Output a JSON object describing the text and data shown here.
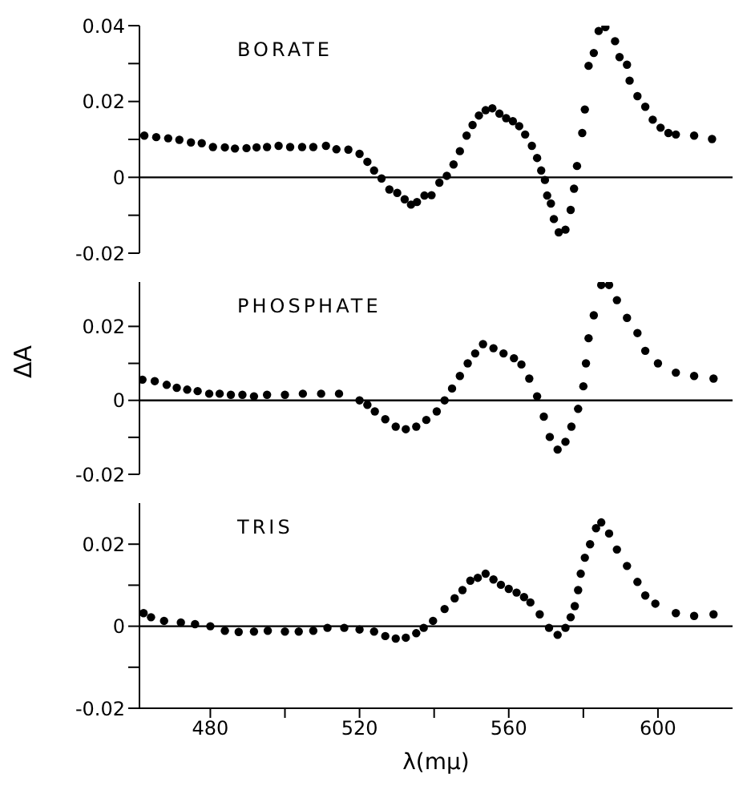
{
  "chart_data": [
    {
      "type": "scatter",
      "title": "BORATE",
      "marker": "circle",
      "tick_labels": "y",
      "xlim": [
        461,
        620
      ],
      "ylim": [
        -0.02,
        0.04
      ],
      "yticks": [
        -0.02,
        {
          "value": -0.01,
          "label": null
        },
        0,
        {
          "value": 0.01,
          "label": null
        },
        0.02,
        {
          "value": 0.03,
          "label": null
        },
        0.04
      ],
      "ref_lines": [
        {
          "axis": "y",
          "value": 0
        }
      ],
      "series": [
        {
          "color": "#000000",
          "x": [
            462.3,
            465.5,
            468.7,
            471.7,
            474.8,
            477.7,
            480.7,
            483.9,
            486.6,
            489.7,
            492.4,
            495.2,
            498.3,
            501.4,
            504.6,
            507.6,
            511,
            513.8,
            517,
            520,
            522.1,
            523.9,
            525.9,
            528,
            530.1,
            532.1,
            533.8,
            535.4,
            537.4,
            539.3,
            541.4,
            543.4,
            545.2,
            546.9,
            548.7,
            550.3,
            552,
            553.8,
            555.6,
            557.5,
            559.3,
            561.1,
            562.8,
            564.4,
            566.2,
            567.6,
            568.7,
            569.7,
            570.3,
            571.3,
            572.1,
            573.4,
            575.2,
            576.6,
            577.5,
            578.3,
            579.7,
            580.4,
            581.4,
            582.8,
            584.1,
            585.9,
            588.5,
            589.7,
            591.7,
            592.4,
            594.5,
            596.6,
            598.6,
            600.7,
            602.8,
            604.8,
            609.7,
            614.5
          ],
          "values": [
            0.011,
            0.0106,
            0.0103,
            0.0099,
            0.0092,
            0.009,
            0.008,
            0.0079,
            0.0076,
            0.0077,
            0.0079,
            0.008,
            0.0083,
            0.008,
            0.008,
            0.008,
            0.0083,
            0.0074,
            0.0073,
            0.0062,
            0.0041,
            0.0018,
            -0.0003,
            -0.0032,
            -0.0041,
            -0.0058,
            -0.0072,
            -0.0065,
            -0.0048,
            -0.0047,
            -0.0014,
            0.0004,
            0.0034,
            0.0069,
            0.011,
            0.0138,
            0.0163,
            0.0177,
            0.0182,
            0.0168,
            0.0156,
            0.0148,
            0.0135,
            0.0113,
            0.0083,
            0.0051,
            0.0018,
            -0.0007,
            -0.0048,
            -0.0069,
            -0.011,
            -0.0145,
            -0.0138,
            -0.0086,
            -0.003,
            0.003,
            0.0117,
            0.0179,
            0.0294,
            0.0328,
            0.0386,
            0.0396,
            0.0359,
            0.0317,
            0.0297,
            0.0255,
            0.0214,
            0.0186,
            0.0152,
            0.0131,
            0.0117,
            0.0113,
            0.011,
            0.0101
          ]
        }
      ]
    },
    {
      "type": "scatter",
      "title": "PHOSPHATE",
      "ylabel": "ΔA",
      "marker": "circle",
      "tick_labels": "y",
      "xlim": [
        461,
        620
      ],
      "ylim": [
        -0.02,
        0.032
      ],
      "yticks": [
        -0.02,
        {
          "value": -0.01,
          "label": null
        },
        0,
        {
          "value": 0.01,
          "label": null
        },
        0.02
      ],
      "ref_lines": [
        {
          "axis": "y",
          "value": 0
        }
      ],
      "series": [
        {
          "color": "#000000",
          "x": [
            461.8,
            465.1,
            468.3,
            471,
            473.8,
            476.6,
            479.7,
            482.5,
            485.5,
            488.6,
            491.7,
            495.2,
            500,
            504.8,
            509.7,
            514.5,
            520,
            522.1,
            524.1,
            526.9,
            529.7,
            532.4,
            535.2,
            537.9,
            540.7,
            542.8,
            544.8,
            546.9,
            549,
            551,
            553.1,
            555.9,
            558.6,
            561.4,
            563.4,
            565.5,
            567.6,
            569.4,
            571,
            573.1,
            575.2,
            576.8,
            578.6,
            580,
            580.7,
            581.4,
            582.8,
            584.8,
            586.9,
            589,
            591.7,
            594.5,
            596.6,
            600,
            604.8,
            609.7,
            614.9
          ],
          "values": [
            0.0056,
            0.0052,
            0.0042,
            0.0034,
            0.0029,
            0.0025,
            0.0018,
            0.0018,
            0.0015,
            0.0015,
            0.0011,
            0.0015,
            0.0015,
            0.0018,
            0.0018,
            0.0018,
            0,
            -0.0012,
            -0.003,
            -0.0051,
            -0.0071,
            -0.0078,
            -0.0071,
            -0.0053,
            -0.003,
            0,
            0.0032,
            0.0066,
            0.01,
            0.0127,
            0.0152,
            0.0141,
            0.0127,
            0.0114,
            0.0097,
            0.0059,
            0.0011,
            -0.0044,
            -0.0099,
            -0.0133,
            -0.0112,
            -0.0071,
            -0.0023,
            0.0038,
            0.01,
            0.0168,
            0.023,
            0.0312,
            0.0312,
            0.0271,
            0.0223,
            0.0182,
            0.0134,
            0.01,
            0.0075,
            0.0066,
            0.0059
          ]
        }
      ]
    },
    {
      "type": "scatter",
      "title": "TRIS",
      "xlabel": "λ(mμ)",
      "marker": "circle",
      "xlim": [
        461,
        620
      ],
      "xticks": [
        480,
        {
          "value": 500,
          "label": null
        },
        520,
        {
          "value": 540,
          "label": null
        },
        560,
        {
          "value": 580,
          "label": null
        },
        600
      ],
      "ylim": [
        -0.02,
        0.03
      ],
      "yticks": [
        -0.02,
        {
          "value": -0.01,
          "label": null
        },
        0,
        {
          "value": 0.01,
          "label": null
        },
        0.02
      ],
      "ref_lines": [
        {
          "axis": "y",
          "value": 0
        }
      ],
      "series": [
        {
          "color": "#000000",
          "x": [
            462.1,
            464.1,
            467.6,
            472.1,
            475.9,
            480,
            483.9,
            487.6,
            491.7,
            495.4,
            500,
            503.7,
            507.6,
            511.4,
            515.9,
            520,
            523.9,
            526.9,
            529.7,
            532.4,
            535.2,
            537.2,
            539.7,
            542.8,
            545.5,
            547.6,
            549.7,
            551.7,
            553.8,
            555.9,
            557.9,
            560,
            562.1,
            564.1,
            565.8,
            568.3,
            570.8,
            573.1,
            575.2,
            576.6,
            577.7,
            578.6,
            579.3,
            580.4,
            581.8,
            583.4,
            584.8,
            586.9,
            589,
            591.7,
            594.5,
            596.6,
            599.3,
            604.8,
            609.7,
            614.9
          ],
          "values": [
            0.0032,
            0.0022,
            0.0013,
            0.0009,
            0.0005,
            0,
            -0.0011,
            -0.0014,
            -0.0013,
            -0.0011,
            -0.0013,
            -0.0013,
            -0.0011,
            -0.0004,
            -0.0004,
            -0.0008,
            -0.0013,
            -0.0024,
            -0.003,
            -0.0028,
            -0.0017,
            -0.0004,
            0.0013,
            0.0042,
            0.0068,
            0.0088,
            0.0111,
            0.0118,
            0.0128,
            0.0114,
            0.0101,
            0.0091,
            0.0082,
            0.0071,
            0.0058,
            0.0029,
            -0.0004,
            -0.0021,
            -0.0004,
            0.0022,
            0.0049,
            0.0088,
            0.0128,
            0.0167,
            0.02,
            0.0239,
            0.0253,
            0.0226,
            0.0187,
            0.0147,
            0.0108,
            0.0075,
            0.0055,
            0.0032,
            0.0025,
            0.0029
          ]
        }
      ]
    }
  ]
}
